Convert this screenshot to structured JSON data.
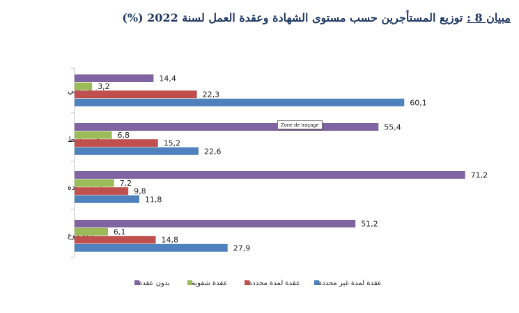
{
  "title": {
    "label": "مبيان 8 :",
    "text": " توزيع المستأجرين حسب مستوى الشهادة وعقدة العمل لسنة 2022 (%)"
  },
  "tooltip": "Zone de traçage",
  "chart_data": {
    "type": "bar",
    "orientation": "horizontal",
    "categories": [
      "مستوى عالي",
      "مستوى متوسط",
      "بدون شهادة",
      "المجموع"
    ],
    "series": [
      {
        "name": "بدون عقدة",
        "color": "#8064a2",
        "values": [
          14.4,
          55.4,
          71.2,
          51.2
        ],
        "labels": [
          "14,4",
          "55,4",
          "71,2",
          "51,2"
        ]
      },
      {
        "name": "عقدة شفوية",
        "color": "#9bbb59",
        "values": [
          3.2,
          6.8,
          7.2,
          6.1
        ],
        "labels": [
          "3,2",
          "6,8",
          "7,2",
          "6,1"
        ]
      },
      {
        "name": "عقدة لمدة محددة",
        "color": "#c0504d",
        "values": [
          22.3,
          15.2,
          9.8,
          14.8
        ],
        "labels": [
          "22,3",
          "15,2",
          "9,8",
          "14,8"
        ]
      },
      {
        "name": "عقدة لمدة غير محددة",
        "color": "#4f81bd",
        "values": [
          60.1,
          22.6,
          11.8,
          27.9
        ],
        "labels": [
          "60,1",
          "22,6",
          "11,8",
          "27,9"
        ]
      }
    ],
    "legend_order": [
      3,
      2,
      1,
      0
    ],
    "legend_position": "bottom",
    "xlim": [
      0,
      75
    ],
    "grid": false
  }
}
